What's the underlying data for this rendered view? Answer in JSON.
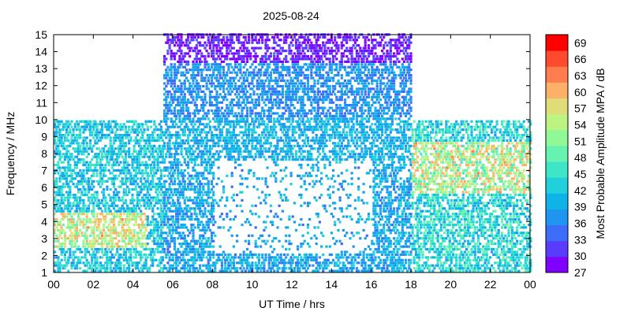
{
  "chart_data": {
    "type": "heatmap",
    "title": "2025-08-24",
    "xlabel": "UT Time / hrs",
    "ylabel": "Frequency / MHz",
    "xlim": [
      0,
      24
    ],
    "ylim": [
      1,
      15
    ],
    "x_ticks": [
      "00",
      "02",
      "04",
      "06",
      "08",
      "10",
      "12",
      "14",
      "16",
      "18",
      "20",
      "22",
      "00"
    ],
    "y_ticks": [
      "1",
      "2",
      "3",
      "4",
      "5",
      "6",
      "7",
      "8",
      "9",
      "10",
      "11",
      "12",
      "13",
      "14",
      "15"
    ],
    "colorbar": {
      "label": "Most Probable Amplitude MPA / dB",
      "ticks": [
        "27",
        "30",
        "33",
        "36",
        "39",
        "42",
        "45",
        "48",
        "51",
        "54",
        "57",
        "60",
        "63",
        "66",
        "69"
      ],
      "min": 27,
      "max": 70.5,
      "colors": [
        "#7f00ff",
        "#5a3cff",
        "#3c6cf8",
        "#1e96f0",
        "#0eb4e8",
        "#20d0da",
        "#3ee6c8",
        "#66f2b0",
        "#90f894",
        "#bcf484",
        "#e0dc78",
        "#fcb068",
        "#ff7d4e",
        "#ff4a2e",
        "#ff0000"
      ]
    },
    "bands": [
      {
        "name": "night1",
        "x": [
          0,
          5.5
        ],
        "y": [
          1,
          9.9
        ],
        "mean": 42,
        "spread": 5
      },
      {
        "name": "night1-strong",
        "x": [
          0,
          4.6
        ],
        "y": [
          2.4,
          4.4
        ],
        "mean": 55,
        "spread": 7
      },
      {
        "name": "day-low",
        "x": [
          5.5,
          18
        ],
        "y": [
          1,
          8
        ],
        "mean": 39,
        "spread": 4
      },
      {
        "name": "day-mid",
        "x": [
          5.5,
          18
        ],
        "y": [
          7.5,
          10.5
        ],
        "mean": 40,
        "spread": 4
      },
      {
        "name": "day-upper",
        "x": [
          5.5,
          18
        ],
        "y": [
          10,
          13.6
        ],
        "mean": 37,
        "spread": 3
      },
      {
        "name": "day-top",
        "x": [
          5.5,
          18
        ],
        "y": [
          13.3,
          15
        ],
        "mean": 30,
        "spread": 3
      },
      {
        "name": "night2",
        "x": [
          18,
          24
        ],
        "y": [
          1,
          9.9
        ],
        "mean": 44,
        "spread": 6
      },
      {
        "name": "night2-strong",
        "x": [
          18,
          24
        ],
        "y": [
          5.5,
          8.6
        ],
        "mean": 54,
        "spread": 8
      }
    ]
  }
}
